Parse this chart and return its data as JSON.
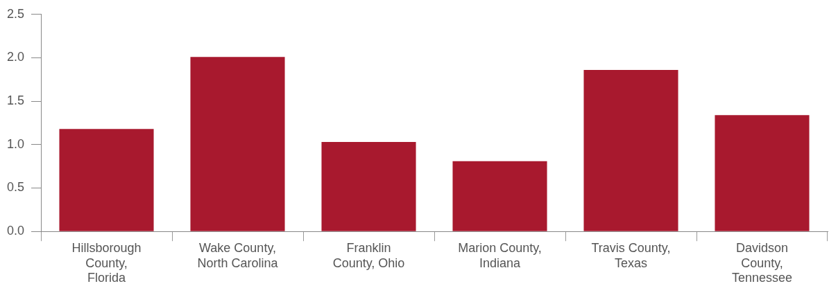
{
  "chart_data": {
    "type": "bar",
    "categories": [
      "Hillsborough County, Florida",
      "Wake County, North Carolina",
      "Franklin County, Ohio",
      "Marion County, Indiana",
      "Travis County, Texas",
      "Davidson County, Tennessee"
    ],
    "values": [
      1.18,
      2.01,
      1.03,
      0.81,
      1.86,
      1.34
    ],
    "color": "#a8192e",
    "ylim": [
      0,
      2.5
    ],
    "yticks": [
      {
        "value": 0,
        "label": "0.0"
      },
      {
        "value": 0.5,
        "label": "0.5"
      },
      {
        "value": 1,
        "label": "1.0"
      },
      {
        "value": 1.5,
        "label": "1.5"
      },
      {
        "value": 2,
        "label": "2.0"
      },
      {
        "value": 2.5,
        "label": "2.5"
      }
    ],
    "grid": false
  }
}
